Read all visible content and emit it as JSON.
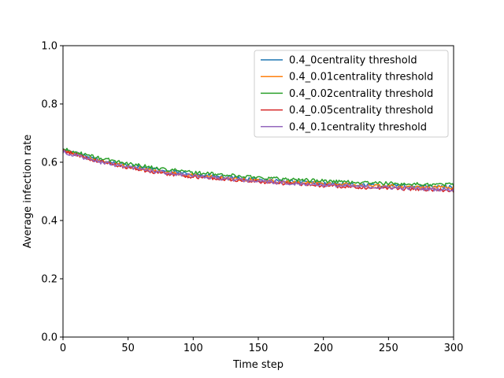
{
  "chart_data": {
    "type": "line",
    "title": "",
    "xlabel": "Time step",
    "ylabel": "Average infection rate",
    "xlim": [
      0,
      300
    ],
    "ylim": [
      0.0,
      1.0
    ],
    "xticks": [
      0,
      50,
      100,
      150,
      200,
      250,
      300
    ],
    "yticks": [
      0.0,
      0.2,
      0.4,
      0.6,
      0.8,
      1.0
    ],
    "xtick_labels": [
      "0",
      "50",
      "100",
      "150",
      "200",
      "250",
      "300"
    ],
    "ytick_labels": [
      "0.0",
      "0.2",
      "0.4",
      "0.6",
      "0.8",
      "1.0"
    ],
    "grid": false,
    "legend_position": "top-right",
    "x": [
      0,
      25,
      50,
      75,
      100,
      125,
      150,
      175,
      200,
      225,
      250,
      275,
      300
    ],
    "series": [
      {
        "name": "0.4_0centrality threshold",
        "color": "#1f77b4",
        "values": [
          0.643,
          0.61,
          0.59,
          0.572,
          0.558,
          0.548,
          0.54,
          0.534,
          0.528,
          0.523,
          0.519,
          0.517,
          0.515
        ]
      },
      {
        "name": "0.4_0.01centrality threshold",
        "color": "#ff7f0e",
        "values": [
          0.643,
          0.606,
          0.584,
          0.567,
          0.554,
          0.545,
          0.538,
          0.532,
          0.527,
          0.522,
          0.518,
          0.515,
          0.513
        ]
      },
      {
        "name": "0.4_0.02centrality threshold",
        "color": "#2ca02c",
        "values": [
          0.645,
          0.617,
          0.595,
          0.578,
          0.565,
          0.556,
          0.548,
          0.541,
          0.536,
          0.531,
          0.527,
          0.524,
          0.523
        ]
      },
      {
        "name": "0.4_0.05centrality threshold",
        "color": "#d62728",
        "values": [
          0.64,
          0.605,
          0.582,
          0.563,
          0.55,
          0.541,
          0.533,
          0.526,
          0.52,
          0.515,
          0.511,
          0.507,
          0.502
        ]
      },
      {
        "name": "0.4_0.1centrality threshold",
        "color": "#9467bd",
        "values": [
          0.636,
          0.603,
          0.583,
          0.566,
          0.553,
          0.543,
          0.535,
          0.528,
          0.522,
          0.517,
          0.513,
          0.509,
          0.505
        ]
      }
    ]
  }
}
